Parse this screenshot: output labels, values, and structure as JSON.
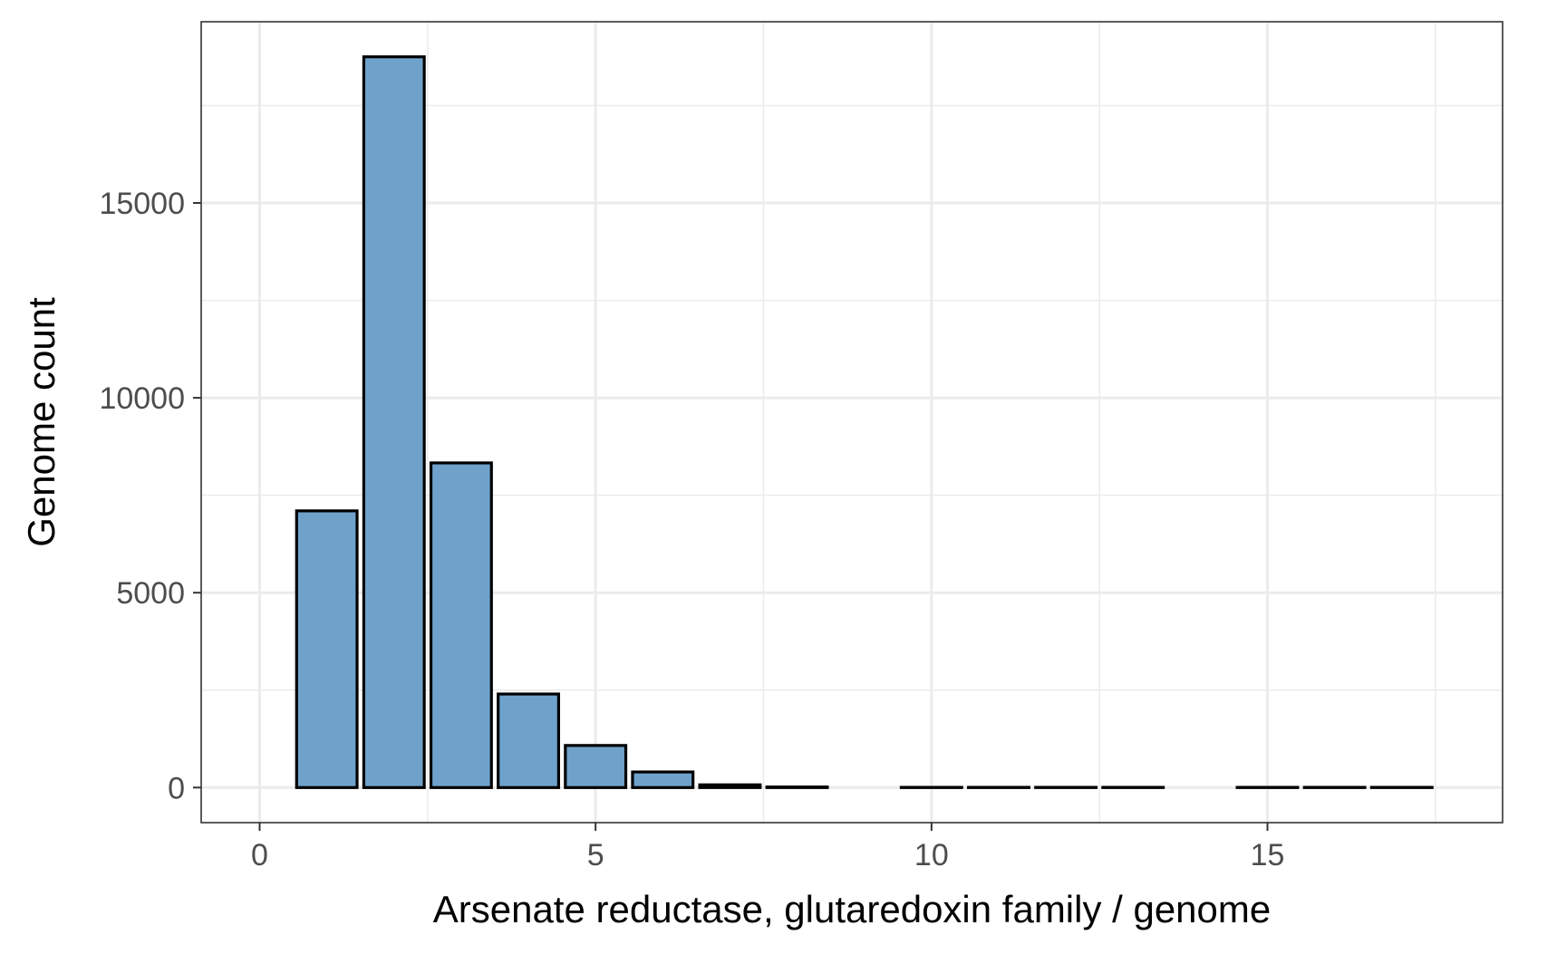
{
  "chart_data": {
    "type": "bar",
    "title": "",
    "xlabel": "Arsenate reductase, glutaredoxin family / genome",
    "ylabel": "Genome count",
    "x": [
      1,
      2,
      3,
      4,
      5,
      6,
      7,
      8,
      10,
      11,
      12,
      13,
      15,
      16,
      17
    ],
    "values": [
      7100,
      18750,
      8330,
      2400,
      1080,
      400,
      70,
      15,
      5,
      5,
      5,
      5,
      5,
      5,
      5
    ],
    "xlim": [
      -0.87,
      18.5
    ],
    "ylim": [
      -900,
      19650
    ],
    "x_ticks": [
      0,
      5,
      10,
      15
    ],
    "x_tick_labels": [
      "0",
      "5",
      "10",
      "15"
    ],
    "y_ticks": [
      0,
      5000,
      10000,
      15000
    ],
    "y_tick_labels": [
      "0",
      "5000",
      "10000",
      "15000"
    ],
    "grid": true,
    "bar_fill": "#6fa2cb",
    "bar_outline": "#000000",
    "legend": "none"
  }
}
